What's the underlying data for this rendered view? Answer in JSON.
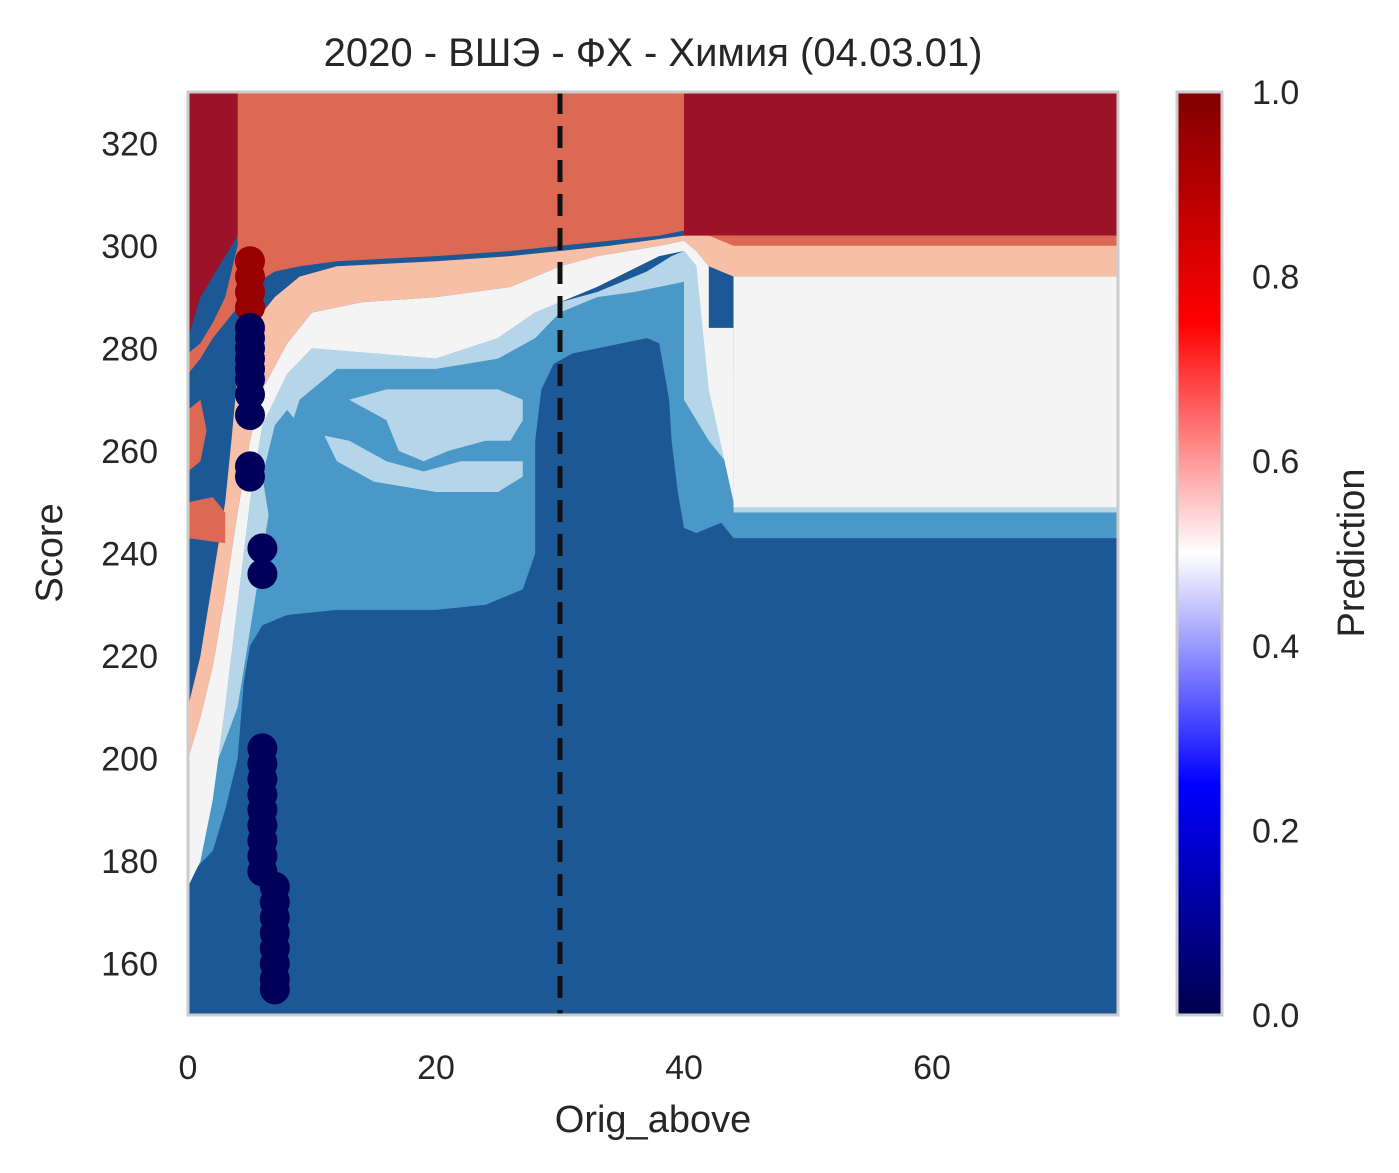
{
  "chart_data": {
    "type": "heatmap",
    "title": "2020 - ВШЭ - ФХ - Химия (04.03.01)",
    "xlabel": "Orig_above",
    "ylabel": "Score",
    "xlim": [
      0,
      75
    ],
    "ylim": [
      150,
      330
    ],
    "x_ticks": [
      0,
      20,
      40,
      60
    ],
    "y_ticks": [
      160,
      180,
      200,
      220,
      240,
      260,
      280,
      300,
      320
    ],
    "grid": false,
    "colorbar": {
      "label": "Prediction",
      "range": [
        0,
        1
      ],
      "ticks": [
        0.0,
        0.2,
        0.4,
        0.6,
        0.8,
        1.0
      ],
      "tick_labels": [
        "0.0",
        "0.2",
        "0.4",
        "0.6",
        "0.8",
        "1.0"
      ],
      "colormap": "seismic",
      "stops": [
        "#00004d",
        "#0000ff",
        "#ffffff",
        "#ff0000",
        "#800000"
      ]
    },
    "contour_levels": [
      {
        "level": "0.0-0.2",
        "color": "#1c5796"
      },
      {
        "level": "0.2-0.4",
        "color": "#4a98c8"
      },
      {
        "level": "0.4-0.5",
        "color": "#b5d5e8"
      },
      {
        "level": "0.5-0.6",
        "color": "#f4f4f4"
      },
      {
        "level": "0.6-0.7",
        "color": "#f7bfa6"
      },
      {
        "level": "0.7-0.9",
        "color": "#dc6953"
      },
      {
        "level": "0.9-1.0",
        "color": "#9b1229"
      }
    ],
    "threshold_line": {
      "x": 30,
      "style": "dashed",
      "color": "#111111"
    },
    "points": [
      {
        "x": 5,
        "y": 297,
        "prediction": 0.95
      },
      {
        "x": 5,
        "y": 294,
        "prediction": 0.95
      },
      {
        "x": 5,
        "y": 291,
        "prediction": 0.95
      },
      {
        "x": 5,
        "y": 288,
        "prediction": 0.95
      },
      {
        "x": 5,
        "y": 284,
        "prediction": 0.02
      },
      {
        "x": 5,
        "y": 282,
        "prediction": 0.02
      },
      {
        "x": 5,
        "y": 280,
        "prediction": 0.02
      },
      {
        "x": 5,
        "y": 278,
        "prediction": 0.02
      },
      {
        "x": 5,
        "y": 276,
        "prediction": 0.02
      },
      {
        "x": 5,
        "y": 274,
        "prediction": 0.02
      },
      {
        "x": 5,
        "y": 271,
        "prediction": 0.02
      },
      {
        "x": 5,
        "y": 267,
        "prediction": 0.02
      },
      {
        "x": 5,
        "y": 257,
        "prediction": 0.02
      },
      {
        "x": 5,
        "y": 255,
        "prediction": 0.02
      },
      {
        "x": 6,
        "y": 241,
        "prediction": 0.02
      },
      {
        "x": 6,
        "y": 236,
        "prediction": 0.02
      },
      {
        "x": 6,
        "y": 202,
        "prediction": 0.02
      },
      {
        "x": 6,
        "y": 199,
        "prediction": 0.02
      },
      {
        "x": 6,
        "y": 196,
        "prediction": 0.02
      },
      {
        "x": 6,
        "y": 193,
        "prediction": 0.02
      },
      {
        "x": 6,
        "y": 190,
        "prediction": 0.02
      },
      {
        "x": 6,
        "y": 187,
        "prediction": 0.02
      },
      {
        "x": 6,
        "y": 184,
        "prediction": 0.02
      },
      {
        "x": 6,
        "y": 181,
        "prediction": 0.02
      },
      {
        "x": 6,
        "y": 178,
        "prediction": 0.02
      },
      {
        "x": 7,
        "y": 175,
        "prediction": 0.02
      },
      {
        "x": 7,
        "y": 172,
        "prediction": 0.02
      },
      {
        "x": 7,
        "y": 169,
        "prediction": 0.02
      },
      {
        "x": 7,
        "y": 166,
        "prediction": 0.02
      },
      {
        "x": 7,
        "y": 163,
        "prediction": 0.02
      },
      {
        "x": 7,
        "y": 160,
        "prediction": 0.02
      },
      {
        "x": 7,
        "y": 157,
        "prediction": 0.02
      },
      {
        "x": 7,
        "y": 155,
        "prediction": 0.02
      }
    ]
  }
}
